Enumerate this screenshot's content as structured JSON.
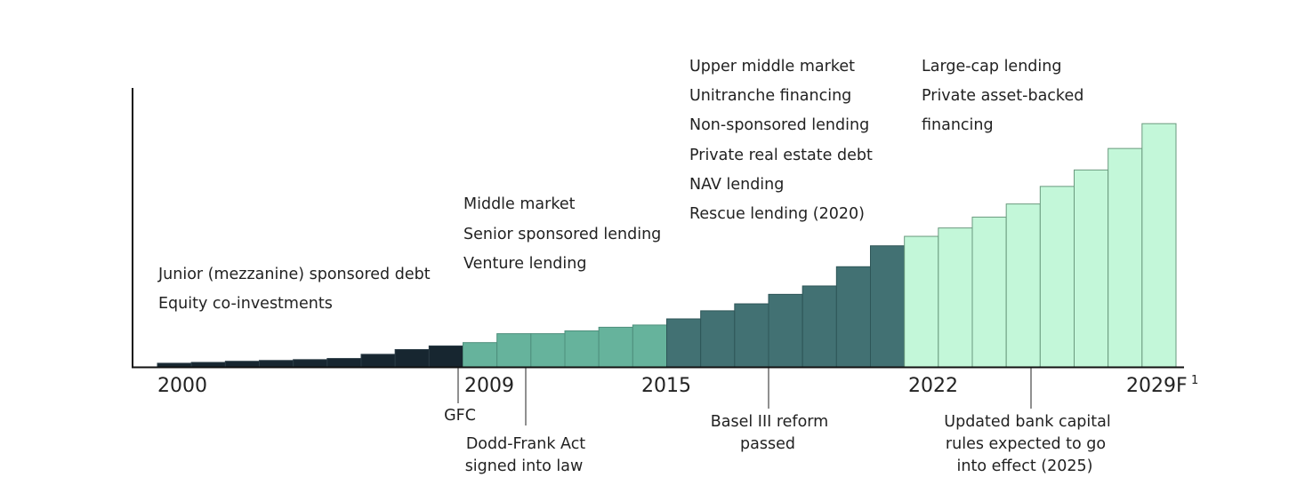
{
  "chart_data": {
    "type": "bar",
    "title": "",
    "xlabel": "",
    "ylabel": "",
    "x_ticks": [
      {
        "label": "2000",
        "index": 0
      },
      {
        "label": "2009",
        "index": 9
      },
      {
        "label": "2015",
        "index": 15
      },
      {
        "label": "2022",
        "index": 22
      },
      {
        "label": "2029F",
        "superscript": "1",
        "index": 29
      }
    ],
    "ylim": [
      0,
      100
    ],
    "grid": false,
    "series_colors": {
      "era1": "#172630",
      "era2": "#66b39c",
      "era3": "#427173",
      "era4": "#c3f7d9"
    },
    "bars": [
      {
        "year": "2000",
        "era": "era1",
        "value": 1.3
      },
      {
        "year": "2001",
        "era": "era1",
        "value": 1.6
      },
      {
        "year": "2002",
        "era": "era1",
        "value": 2.0
      },
      {
        "year": "2003",
        "era": "era1",
        "value": 2.3
      },
      {
        "year": "2004",
        "era": "era1",
        "value": 2.6
      },
      {
        "year": "2005",
        "era": "era1",
        "value": 3.0
      },
      {
        "year": "2006",
        "era": "era1",
        "value": 4.5
      },
      {
        "year": "2007",
        "era": "era1",
        "value": 6.2
      },
      {
        "year": "2008",
        "era": "era1",
        "value": 7.5
      },
      {
        "year": "2009",
        "era": "era2",
        "value": 8.7
      },
      {
        "year": "2010",
        "era": "era2",
        "value": 11.9
      },
      {
        "year": "2011",
        "era": "era2",
        "value": 11.9
      },
      {
        "year": "2012",
        "era": "era2",
        "value": 12.9
      },
      {
        "year": "2013",
        "era": "era2",
        "value": 14.2
      },
      {
        "year": "2014",
        "era": "era2",
        "value": 15.0
      },
      {
        "year": "2015",
        "era": "era3",
        "value": 17.2
      },
      {
        "year": "2016",
        "era": "era3",
        "value": 20.1
      },
      {
        "year": "2017",
        "era": "era3",
        "value": 22.6
      },
      {
        "year": "2018",
        "era": "era3",
        "value": 26.0
      },
      {
        "year": "2019",
        "era": "era3",
        "value": 29.0
      },
      {
        "year": "2020",
        "era": "era3",
        "value": 35.9
      },
      {
        "year": "2021",
        "era": "era3",
        "value": 43.4
      },
      {
        "year": "2022",
        "era": "era4",
        "value": 46.8
      },
      {
        "year": "2023",
        "era": "era4",
        "value": 49.8
      },
      {
        "year": "2024",
        "era": "era4",
        "value": 53.7
      },
      {
        "year": "2025",
        "era": "era4",
        "value": 58.4
      },
      {
        "year": "2026",
        "era": "era4",
        "value": 64.7
      },
      {
        "year": "2027",
        "era": "era4",
        "value": 70.6
      },
      {
        "year": "2028",
        "era": "era4",
        "value": 78.3
      },
      {
        "year": "2029F",
        "era": "era4",
        "value": 87.2
      }
    ],
    "annotations": [
      {
        "name": "era1-segments",
        "lines": [
          "Junior (mezzanine) sponsored debt",
          "Equity co-investments"
        ]
      },
      {
        "name": "era2-segments",
        "lines": [
          "Middle market",
          "Senior sponsored lending",
          "Venture lending"
        ]
      },
      {
        "name": "era3-segments",
        "lines": [
          "Upper middle market",
          "Unitranche financing",
          "Non-sponsored lending",
          "Private real estate debt",
          "NAV lending",
          "Rescue lending (2020)"
        ]
      },
      {
        "name": "era4-segments",
        "lines": [
          "Large-cap lending",
          "Private asset-backed",
          "financing"
        ]
      }
    ],
    "events": [
      {
        "name": "gfc",
        "lines": [
          "GFC"
        ]
      },
      {
        "name": "dodd-frank",
        "lines": [
          "Dodd-Frank Act",
          "signed into law"
        ]
      },
      {
        "name": "basel-iii",
        "lines": [
          "Basel III reform",
          "passed"
        ]
      },
      {
        "name": "bank-capital-rules",
        "lines": [
          "Updated bank capital",
          "rules expected to go",
          "into effect (2025)"
        ]
      }
    ]
  }
}
